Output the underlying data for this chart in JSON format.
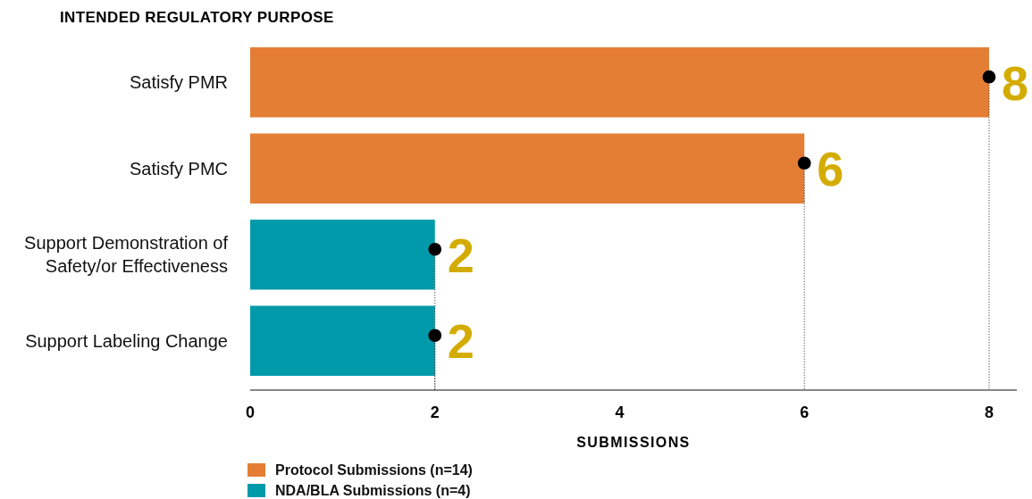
{
  "chart_data": {
    "type": "bar",
    "orientation": "horizontal",
    "stacked": true,
    "ylabel": "INTENDED REGULATORY PURPOSE",
    "xlabel": "SUBMISSIONS",
    "categories": [
      "Satisfy PMR",
      "Satisfy PMC",
      "Support Demonstration of Safety/or Effectiveness",
      "Support Labeling Change"
    ],
    "series": [
      {
        "name": "Protocol Submissions (n=14)",
        "color": "#e37e34",
        "values": [
          8,
          6,
          null,
          null
        ]
      },
      {
        "name": "NDA/BLA Submissions (n=4)",
        "color": "#009aaa",
        "values": [
          null,
          null,
          2,
          2
        ]
      },
      {
        "type": "scatter",
        "color": "#000000",
        "values": [
          8,
          6,
          2,
          2
        ],
        "value_labels": [
          "8",
          "6",
          "2",
          "2"
        ],
        "marker": "circle",
        "line_style": "dotted"
      }
    ],
    "xlim": [
      0,
      8.3
    ],
    "xticks": [
      0,
      2,
      4,
      6,
      8
    ],
    "legend": "bottom"
  }
}
